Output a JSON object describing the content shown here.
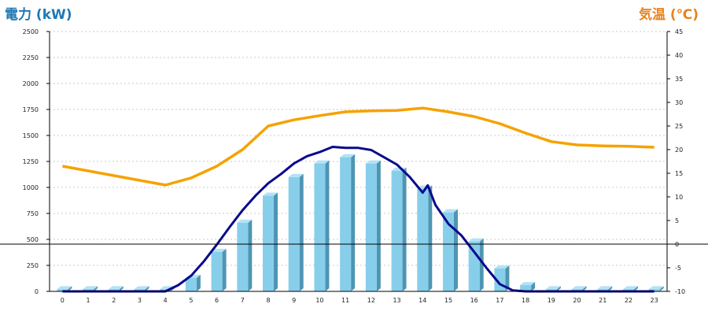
{
  "titles": {
    "left": "電力 (kW)",
    "right": "気温 (℃)"
  },
  "colors": {
    "power_curve": "#0a0a8c",
    "temperature": "#f5a200",
    "bar_front": "#87ceeb",
    "bar_side": "#4e95b3",
    "bar_top": "#b3e2f5",
    "zero_line": "#000000"
  },
  "chart_data": {
    "type": "bar",
    "categories": [
      "0",
      "1",
      "2",
      "3",
      "4",
      "5",
      "6",
      "7",
      "8",
      "9",
      "10",
      "11",
      "12",
      "13",
      "14",
      "15",
      "16",
      "17",
      "18",
      "19",
      "20",
      "21",
      "22",
      "23"
    ],
    "left_axis": {
      "label": "電力 (kW)",
      "ylim": [
        0,
        2500
      ],
      "ticks": [
        0,
        250,
        500,
        750,
        1000,
        1250,
        1500,
        1750,
        2000,
        2250,
        2500
      ]
    },
    "right_axis": {
      "label": "気温 (℃)",
      "ylim": [
        -10,
        45
      ],
      "ticks": [
        -10,
        -5,
        0,
        5,
        10,
        15,
        20,
        25,
        30,
        35,
        40,
        45
      ]
    },
    "grid": true,
    "series": [
      {
        "type": "bar",
        "axis": "left",
        "values": [
          20,
          20,
          20,
          20,
          20,
          130,
          380,
          660,
          920,
          1100,
          1230,
          1290,
          1230,
          1160,
          990,
          760,
          480,
          220,
          60,
          20,
          20,
          20,
          20,
          20
        ]
      },
      {
        "type": "line",
        "axis": "left",
        "x": [
          0,
          1,
          2,
          3,
          4,
          4.5,
          5,
          5.5,
          6,
          6.5,
          7,
          7.5,
          8,
          8.5,
          9,
          9.5,
          10,
          10.5,
          11,
          11.5,
          12,
          12.5,
          13,
          13.5,
          14,
          14.2,
          14.5,
          15,
          15.5,
          16,
          16.5,
          17,
          17.5,
          18,
          19,
          20,
          21,
          22,
          23
        ],
        "values": [
          0,
          0,
          0,
          0,
          0,
          60,
          150,
          290,
          450,
          620,
          780,
          920,
          1040,
          1130,
          1230,
          1300,
          1340,
          1390,
          1380,
          1380,
          1360,
          1290,
          1220,
          1100,
          950,
          1020,
          830,
          650,
          540,
          380,
          220,
          70,
          10,
          0,
          0,
          0,
          0,
          0,
          0
        ]
      },
      {
        "type": "line",
        "axis": "right",
        "x": [
          0,
          1,
          2,
          3,
          4,
          5,
          6,
          7,
          8,
          9,
          10,
          11,
          12,
          13,
          14,
          15,
          16,
          17,
          18,
          19,
          20,
          21,
          22,
          23
        ],
        "values": [
          16.5,
          15.5,
          14.5,
          13.5,
          12.5,
          14,
          16.5,
          20,
          25,
          26.3,
          27.2,
          28,
          28.2,
          28.3,
          28.8,
          28,
          27,
          25.5,
          23.5,
          21.7,
          21,
          20.8,
          20.7,
          20.5
        ]
      }
    ]
  }
}
